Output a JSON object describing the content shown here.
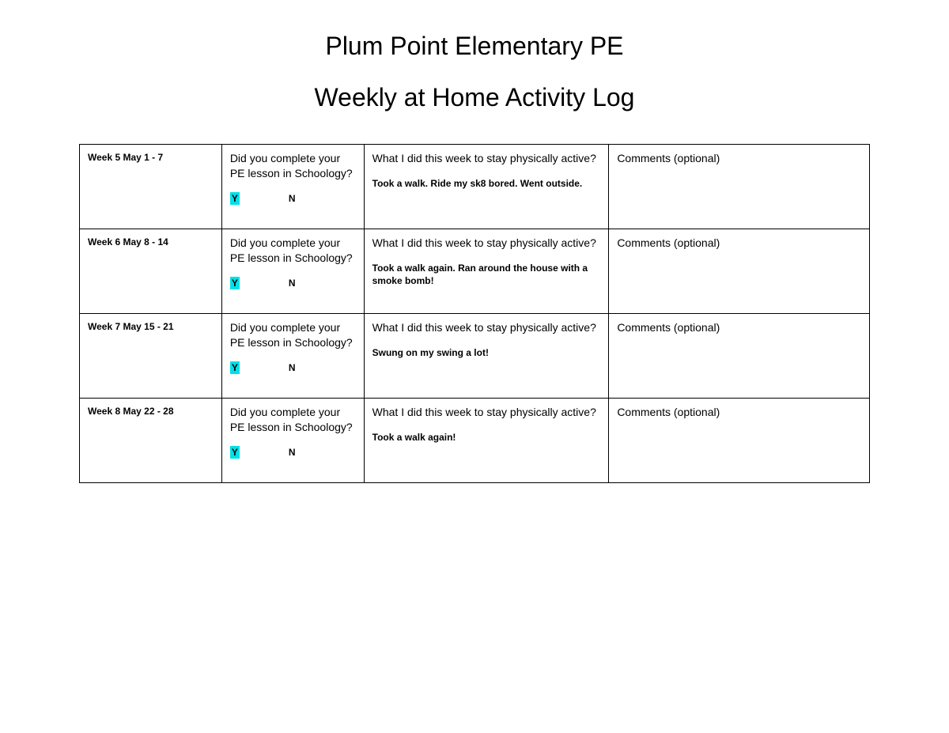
{
  "title": {
    "line1": "Plum Point Elementary PE",
    "line2": "Weekly at Home Activity Log"
  },
  "highlight_color": "#00e0e8",
  "questions": {
    "complete": "Did you complete your PE lesson in Schoology?",
    "activity": "What I did this week to stay physically active?",
    "comments": "Comments (optional)"
  },
  "yn": {
    "yes": "Y",
    "no": "N"
  },
  "rows": [
    {
      "week": "Week 5 May 1 - 7",
      "selected": "Y",
      "activity_answer": "Took a walk. Ride my sk8 bored. Went outside.",
      "comments": ""
    },
    {
      "week": "Week 6 May 8 - 14",
      "selected": "Y",
      "activity_answer": "Took a walk again. Ran around the house with a smoke bomb!",
      "comments": ""
    },
    {
      "week": "Week 7 May 15 - 21",
      "selected": "Y",
      "activity_answer": "Swung on my swing a lot!",
      "comments": ""
    },
    {
      "week": "Week 8 May 22 - 28",
      "selected": "Y",
      "activity_answer": "Took a walk again!",
      "comments": ""
    }
  ]
}
